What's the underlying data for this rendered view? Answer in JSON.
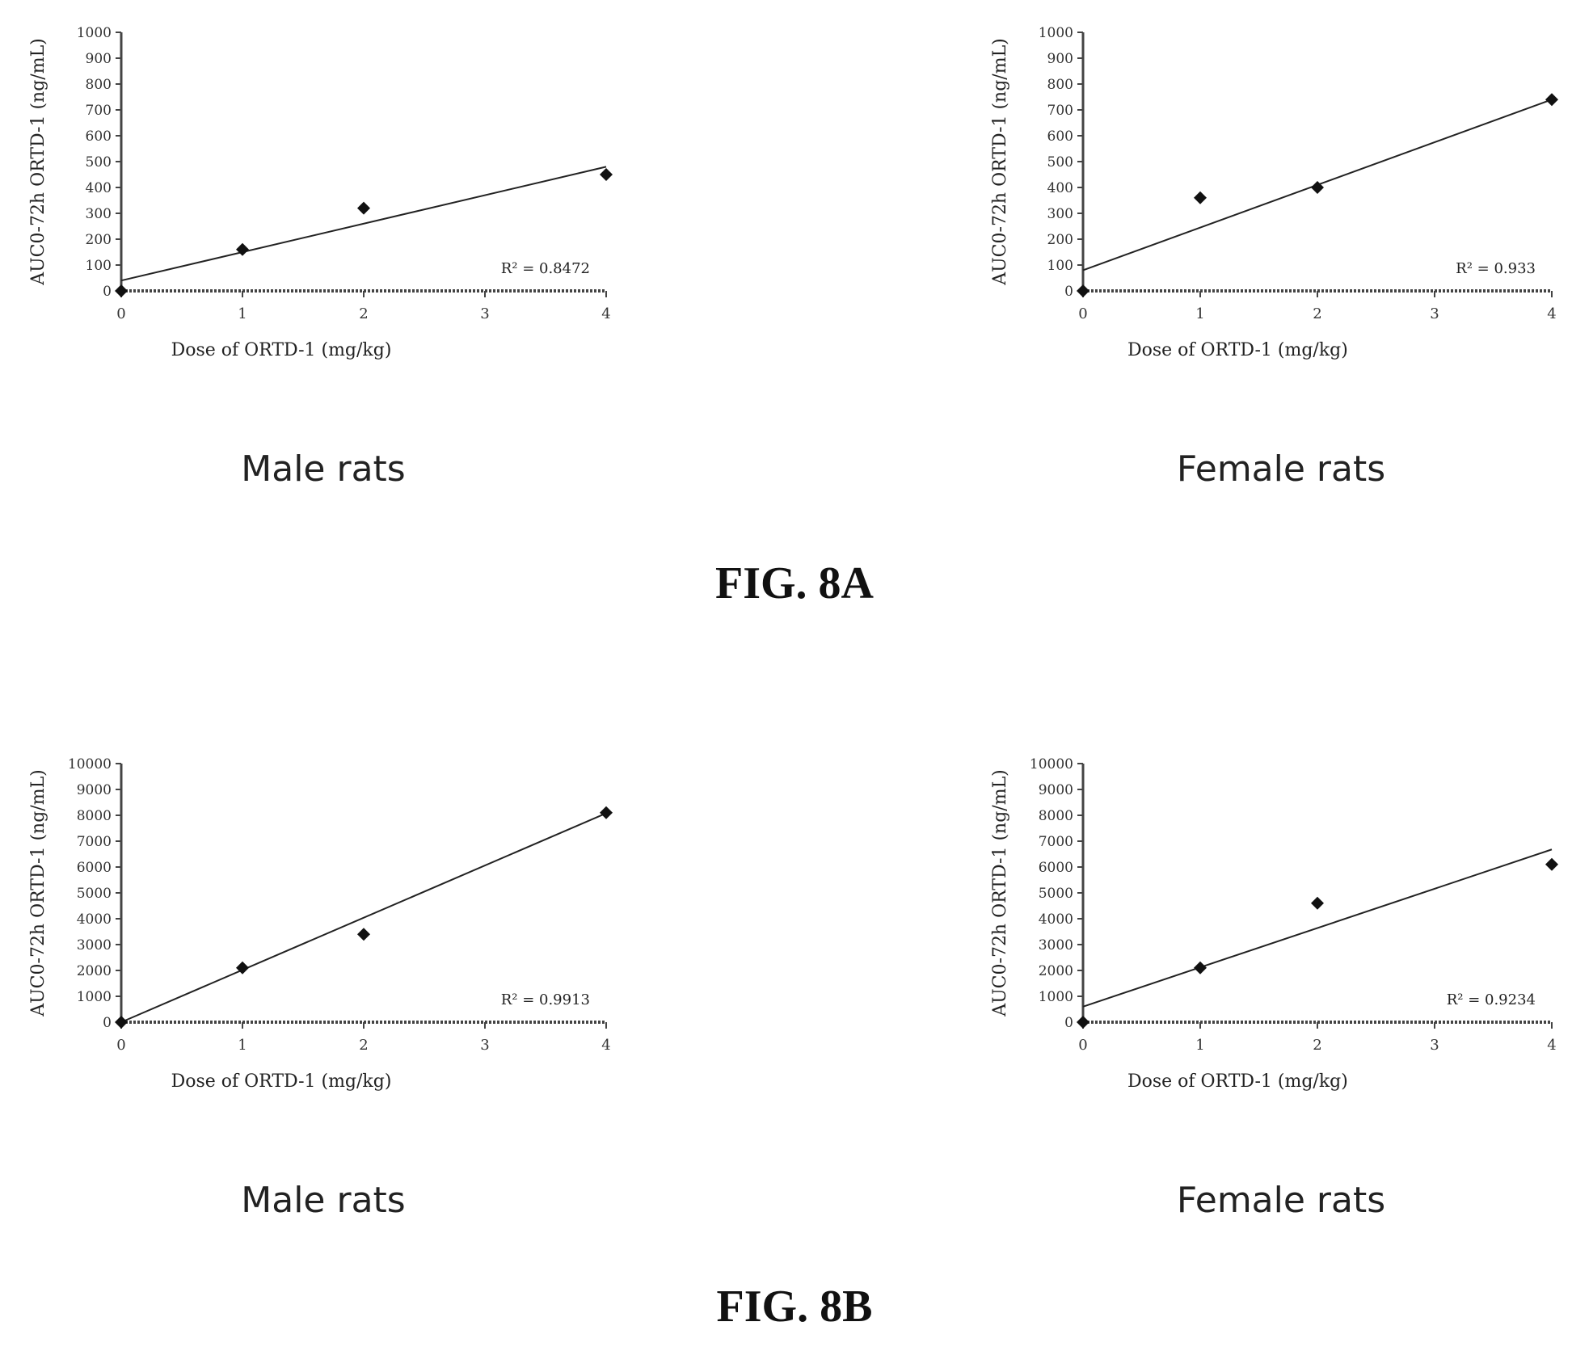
{
  "figures": [
    {
      "label": "FIG. 8A"
    },
    {
      "label": "FIG. 8B"
    }
  ],
  "chart_data": [
    {
      "type": "scatter",
      "caption": "Male rats",
      "xlabel": "Dose of ORTD-1 (mg/kg)",
      "ylabel": "AUC0-72h ORTD-1 (ng/mL)",
      "x": [
        0,
        1,
        2,
        4
      ],
      "y": [
        0,
        160,
        320,
        450
      ],
      "trendline": {
        "intercept": 40,
        "slope": 110
      },
      "r2_label": "R² = 0.8472",
      "xlim": [
        0,
        4
      ],
      "ylim": [
        0,
        1000
      ],
      "xticks": [
        0,
        1,
        2,
        3,
        4
      ],
      "yticks": [
        0,
        100,
        200,
        300,
        400,
        500,
        600,
        700,
        800,
        900,
        1000
      ]
    },
    {
      "type": "scatter",
      "caption": "Female rats",
      "xlabel": "Dose of ORTD-1 (mg/kg)",
      "ylabel": "AUC0-72h ORTD-1 (ng/mL)",
      "x": [
        0,
        1,
        2,
        4
      ],
      "y": [
        0,
        360,
        400,
        740
      ],
      "trendline": {
        "intercept": 80,
        "slope": 165
      },
      "r2_label": "R² = 0.933",
      "xlim": [
        0,
        4
      ],
      "ylim": [
        0,
        1000
      ],
      "xticks": [
        0,
        1,
        2,
        3,
        4
      ],
      "yticks": [
        0,
        100,
        200,
        300,
        400,
        500,
        600,
        700,
        800,
        900,
        1000
      ]
    },
    {
      "type": "scatter",
      "caption": "Male rats",
      "xlabel": "Dose of ORTD-1 (mg/kg)",
      "ylabel": "AUC0-72h ORTD-1 (ng/mL)",
      "x": [
        0,
        1,
        2,
        4
      ],
      "y": [
        0,
        2100,
        3400,
        8100
      ],
      "trendline": {
        "intercept": 0,
        "slope": 2020
      },
      "r2_label": "R² = 0.9913",
      "xlim": [
        0,
        4
      ],
      "ylim": [
        0,
        10000
      ],
      "xticks": [
        0,
        1,
        2,
        3,
        4
      ],
      "yticks": [
        0,
        1000,
        2000,
        3000,
        4000,
        5000,
        6000,
        7000,
        8000,
        9000,
        10000
      ]
    },
    {
      "type": "scatter",
      "caption": "Female rats",
      "xlabel": "Dose of ORTD-1 (mg/kg)",
      "ylabel": "AUC0-72h ORTD-1 (ng/mL)",
      "x": [
        0,
        1,
        2,
        4
      ],
      "y": [
        0,
        2100,
        4600,
        6100
      ],
      "trendline": {
        "intercept": 600,
        "slope": 1520
      },
      "r2_label": "R² = 0.9234",
      "xlim": [
        0,
        4
      ],
      "ylim": [
        0,
        10000
      ],
      "xticks": [
        0,
        1,
        2,
        3,
        4
      ],
      "yticks": [
        0,
        1000,
        2000,
        3000,
        4000,
        5000,
        6000,
        7000,
        8000,
        9000,
        10000
      ]
    }
  ]
}
